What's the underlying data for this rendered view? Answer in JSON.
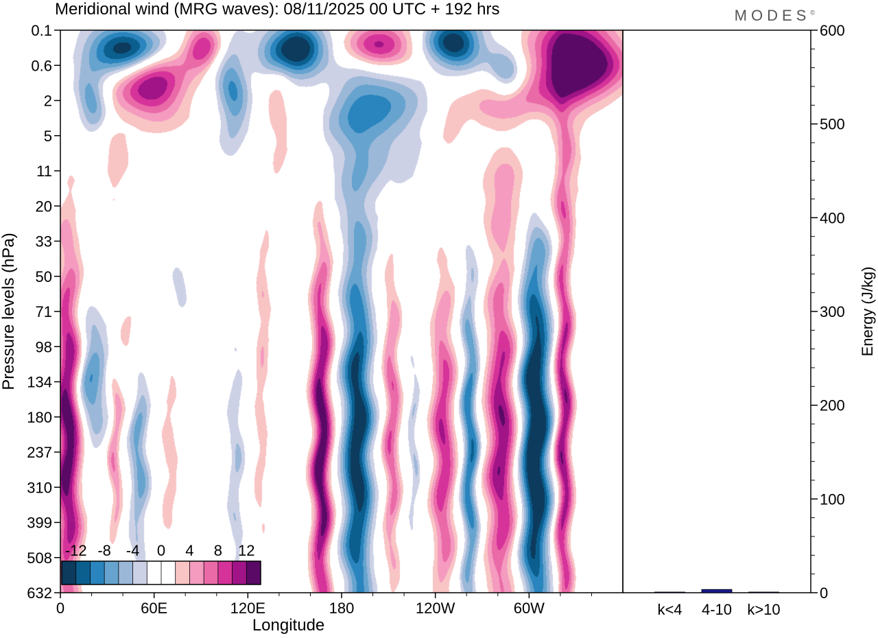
{
  "header": {
    "title": "Meridional wind (MRG waves):  08/11/2025  00 UTC  + 192 hrs",
    "brand": "MODES",
    "brand_mark": "©"
  },
  "chart_data": [
    {
      "type": "heatmap",
      "title": "Meridional wind (MRG waves)",
      "xlabel": "Longitude",
      "ylabel": "Pressure levels (hPa)",
      "x_ticks": [
        "0",
        "60E",
        "120E",
        "180",
        "120W",
        "60W"
      ],
      "x_range_deg": [
        0,
        360
      ],
      "y_ticks": [
        "0.1",
        "0.6",
        "2",
        "5",
        "11",
        "20",
        "33",
        "50",
        "71",
        "98",
        "134",
        "180",
        "237",
        "310",
        "399",
        "508",
        "632"
      ],
      "colorbar": {
        "labels": [
          "-12",
          "-8",
          "-4",
          "0",
          "4",
          "8",
          "12"
        ],
        "levels": [
          -14,
          -12,
          -10,
          -8,
          -6,
          -4,
          -2,
          2,
          4,
          6,
          8,
          10,
          12,
          14
        ],
        "colors": [
          "#0c3b5e",
          "#0b5f8f",
          "#2a84bd",
          "#66a3cf",
          "#9cb8d8",
          "#cdd1e6",
          "#ffffff",
          "#ffffff",
          "#f9c4c4",
          "#f49bbf",
          "#ea6aa8",
          "#d6339a",
          "#a01487",
          "#5a0a66"
        ]
      },
      "blobs": [
        {
          "lon": 5,
          "p": 200,
          "v": 14,
          "rx": 8,
          "ry": 5.2
        },
        {
          "lon": 20,
          "p": 130,
          "v": -8,
          "rx": 10,
          "ry": 1.8
        },
        {
          "lon": 35,
          "p": 240,
          "v": 6,
          "rx": 4,
          "ry": 2.6
        },
        {
          "lon": 50,
          "p": 240,
          "v": -7,
          "rx": 6,
          "ry": 3.0
        },
        {
          "lon": 70,
          "p": 250,
          "v": 3,
          "rx": 6,
          "ry": 4.0
        },
        {
          "lon": 112,
          "p": 260,
          "v": -4,
          "rx": 5,
          "ry": 4.0
        },
        {
          "lon": 128,
          "p": 240,
          "v": 3,
          "rx": 4,
          "ry": 3.5
        },
        {
          "lon": 167,
          "p": 230,
          "v": 14,
          "rx": 6,
          "ry": 6.0
        },
        {
          "lon": 190,
          "p": 220,
          "v": -14,
          "rx": 9,
          "ry": 6.0
        },
        {
          "lon": 212,
          "p": 190,
          "v": 8,
          "rx": 5,
          "ry": 4.5
        },
        {
          "lon": 226,
          "p": 220,
          "v": -4,
          "rx": 3,
          "ry": 3.0
        },
        {
          "lon": 245,
          "p": 220,
          "v": 10,
          "rx": 7,
          "ry": 4.5
        },
        {
          "lon": 262,
          "p": 230,
          "v": -10,
          "rx": 5,
          "ry": 5.0
        },
        {
          "lon": 282,
          "p": 210,
          "v": 12,
          "rx": 9,
          "ry": 5.0
        },
        {
          "lon": 304,
          "p": 210,
          "v": -16,
          "rx": 9,
          "ry": 6.0
        },
        {
          "lon": 322,
          "p": 200,
          "v": 12,
          "rx": 5,
          "ry": 7.0
        },
        {
          "lon": 40,
          "p": 0.25,
          "v": -14,
          "rx": 25,
          "ry": 0.7
        },
        {
          "lon": 90,
          "p": 0.22,
          "v": 10,
          "rx": 12,
          "ry": 0.6
        },
        {
          "lon": 150,
          "p": 0.25,
          "v": -16,
          "rx": 20,
          "ry": 0.7
        },
        {
          "lon": 205,
          "p": 0.22,
          "v": 12,
          "rx": 22,
          "ry": 0.6
        },
        {
          "lon": 253,
          "p": 0.2,
          "v": -14,
          "rx": 18,
          "ry": 0.7
        },
        {
          "lon": 330,
          "p": 0.45,
          "v": 18,
          "rx": 28,
          "ry": 1.1
        },
        {
          "lon": 60,
          "p": 1.2,
          "v": 12,
          "rx": 22,
          "ry": 1.0
        },
        {
          "lon": 20,
          "p": 2.0,
          "v": -8,
          "rx": 10,
          "ry": 0.8
        },
        {
          "lon": 110,
          "p": 1.5,
          "v": -8,
          "rx": 10,
          "ry": 1.5
        },
        {
          "lon": 200,
          "p": 2.2,
          "v": -7,
          "rx": 28,
          "ry": 1.2
        },
        {
          "lon": 285,
          "p": 0.8,
          "v": -8,
          "rx": 12,
          "ry": 0.8
        },
        {
          "lon": 290,
          "p": 2.0,
          "v": 6,
          "rx": 32,
          "ry": 0.8
        },
        {
          "lon": 140,
          "p": 4.0,
          "v": 4,
          "rx": 8,
          "ry": 2.0
        },
        {
          "lon": 290,
          "p": 16,
          "v": 4,
          "rx": 25,
          "ry": 1.2
        },
        {
          "lon": 195,
          "p": 9,
          "v": -3,
          "rx": 45,
          "ry": 2.0
        },
        {
          "lon": 250,
          "p": 5,
          "v": 3,
          "rx": 10,
          "ry": 1.0
        },
        {
          "lon": 325,
          "p": 8,
          "v": 3,
          "rx": 10,
          "ry": 2.0
        },
        {
          "lon": 35,
          "p": 10,
          "v": 3,
          "rx": 10,
          "ry": 1.5
        },
        {
          "lon": 130,
          "p": 60,
          "v": 3,
          "rx": 5,
          "ry": 3.0
        },
        {
          "lon": 75,
          "p": 55,
          "v": -3,
          "rx": 7,
          "ry": 1.5
        },
        {
          "lon": 45,
          "p": 100,
          "v": 3,
          "rx": 6,
          "ry": 2.0
        }
      ]
    },
    {
      "type": "bar",
      "categories": [
        "k<4",
        "4-10",
        "k>10"
      ],
      "values": [
        0.5,
        3.5,
        0.3
      ],
      "ylabel": "Energy (J/kg)",
      "ylim": [
        0,
        600
      ],
      "y_ticks": [
        0,
        100,
        200,
        300,
        400,
        500,
        600
      ],
      "bar_color": "#1a1a8c"
    }
  ]
}
